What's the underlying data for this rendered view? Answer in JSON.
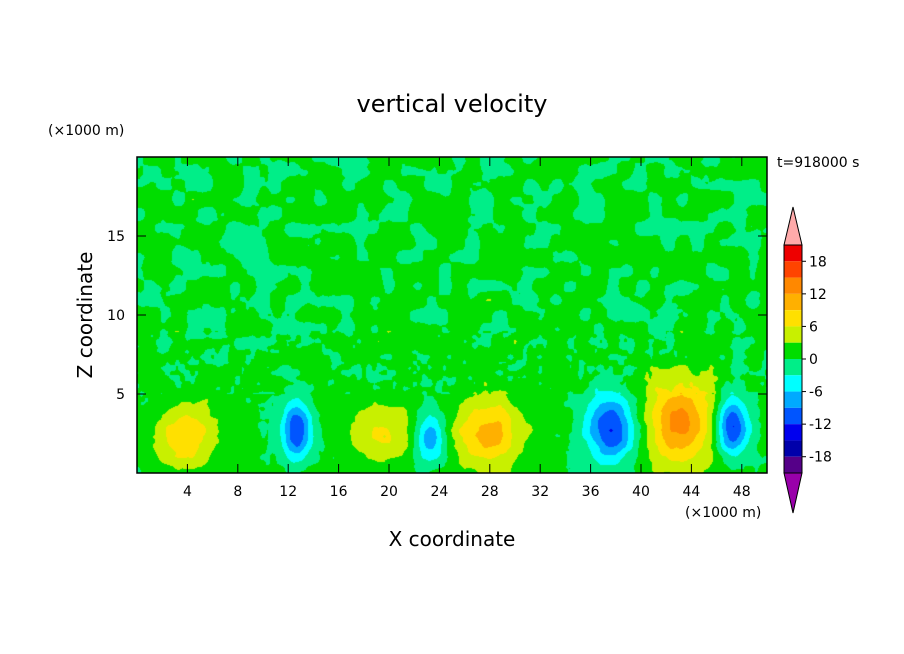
{
  "chart_data": {
    "type": "heatmap",
    "title": "vertical velocity",
    "xlabel": "X coordinate",
    "ylabel": "Z coordinate",
    "x_units": "(×1000 m)",
    "y_units": "(×1000 m)",
    "time_label": "t=918000 s",
    "xlim": [
      0,
      50
    ],
    "ylim": [
      0,
      20
    ],
    "x_ticks": [
      4,
      8,
      12,
      16,
      20,
      24,
      28,
      32,
      36,
      40,
      44,
      48
    ],
    "y_ticks": [
      5,
      10,
      15
    ],
    "background_value": 0.5,
    "cells": [
      {
        "x": 3.9,
        "z": 2.4,
        "sx": 1.6,
        "sz": 1.5,
        "w": 8
      },
      {
        "x": 12.7,
        "z": 2.7,
        "sx": 0.8,
        "sz": 1.2,
        "w": -13
      },
      {
        "x": 19.6,
        "z": 2.5,
        "sx": 1.8,
        "sz": 1.4,
        "w": 6
      },
      {
        "x": 23.3,
        "z": 2.2,
        "sx": 0.9,
        "sz": 1.1,
        "w": -9
      },
      {
        "x": 27.8,
        "z": 2.5,
        "sx": 1.9,
        "sz": 1.6,
        "w": 10
      },
      {
        "x": 37.6,
        "z": 2.8,
        "sx": 1.4,
        "sz": 1.4,
        "w": -13
      },
      {
        "x": 43.2,
        "z": 3.2,
        "sx": 2.0,
        "sz": 2.0,
        "w": 12
      },
      {
        "x": 47.2,
        "z": 3.0,
        "sx": 0.9,
        "sz": 1.3,
        "w": -14
      }
    ],
    "colorbar": {
      "ticks": [
        18,
        12,
        6,
        0,
        -6,
        -12,
        -18
      ],
      "levels": [
        21,
        18,
        15,
        12,
        9,
        6,
        3,
        0,
        -3,
        -6,
        -9,
        -12,
        -15,
        -18,
        -21
      ],
      "colors": [
        "#ee0000",
        "#ff4400",
        "#ff8800",
        "#ffb000",
        "#ffe000",
        "#c8f000",
        "#00dd00",
        "#00ee88",
        "#00ffff",
        "#00aaff",
        "#0055ff",
        "#0000ee",
        "#0000aa",
        "#550088"
      ],
      "over_color": "#ffaaaa",
      "under_color": "#9900aa"
    }
  }
}
